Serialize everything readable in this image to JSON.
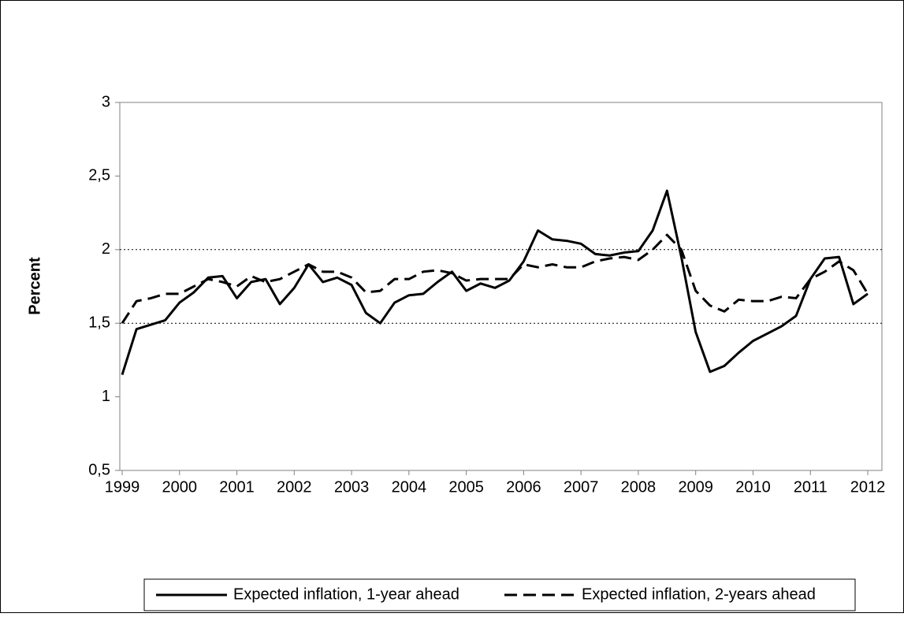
{
  "chart_data": {
    "type": "line",
    "y_label": "Percent",
    "categories": [
      "1999",
      null,
      null,
      null,
      "2000",
      null,
      null,
      null,
      "2001",
      null,
      null,
      null,
      "2002",
      null,
      null,
      null,
      "2003",
      null,
      null,
      null,
      "2004",
      null,
      null,
      null,
      "2005",
      null,
      null,
      null,
      "2006",
      null,
      null,
      null,
      "2007",
      null,
      null,
      null,
      "2008",
      null,
      null,
      null,
      "2009",
      null,
      null,
      null,
      "2010",
      null,
      null,
      null,
      "2011",
      null,
      null,
      null,
      "2012"
    ],
    "series": [
      {
        "name": "Expected inflation, 1-year ahead",
        "color": "#000000",
        "dash": "solid",
        "values": [
          1.15,
          1.46,
          1.49,
          1.52,
          1.64,
          1.71,
          1.81,
          1.82,
          1.67,
          1.78,
          1.8,
          1.63,
          1.74,
          1.9,
          1.78,
          1.81,
          1.76,
          1.57,
          1.5,
          1.64,
          1.69,
          1.7,
          1.78,
          1.85,
          1.72,
          1.77,
          1.74,
          1.79,
          1.92,
          2.13,
          2.07,
          2.06,
          2.04,
          1.97,
          1.96,
          1.98,
          1.99,
          2.13,
          2.4,
          1.95,
          1.44,
          1.17,
          1.21,
          1.3,
          1.38,
          1.43,
          1.48,
          1.55,
          1.8,
          1.94,
          1.95,
          1.63,
          1.7
        ]
      },
      {
        "name": "Expected inflation, 2-years ahead",
        "color": "#000000",
        "dash": "dashed",
        "values": [
          1.5,
          1.65,
          1.67,
          1.7,
          1.7,
          1.75,
          1.8,
          1.78,
          1.75,
          1.82,
          1.78,
          1.8,
          1.85,
          1.9,
          1.85,
          1.85,
          1.81,
          1.71,
          1.72,
          1.8,
          1.8,
          1.85,
          1.86,
          1.84,
          1.79,
          1.8,
          1.8,
          1.8,
          1.9,
          1.88,
          1.9,
          1.88,
          1.88,
          1.92,
          1.94,
          1.95,
          1.93,
          2.0,
          2.1,
          2.0,
          1.72,
          1.62,
          1.58,
          1.66,
          1.65,
          1.65,
          1.68,
          1.67,
          1.8,
          1.85,
          1.92,
          1.86,
          1.7
        ]
      }
    ],
    "ylim": [
      0.5,
      3
    ],
    "yticks": [
      {
        "value": 0.5,
        "label": "0,5"
      },
      1,
      {
        "value": 1.5,
        "label": "1,5"
      },
      2,
      {
        "value": 2.5,
        "label": "2,5"
      },
      3
    ],
    "reference_lines": [
      1.5,
      2
    ],
    "legend": "bottom"
  }
}
